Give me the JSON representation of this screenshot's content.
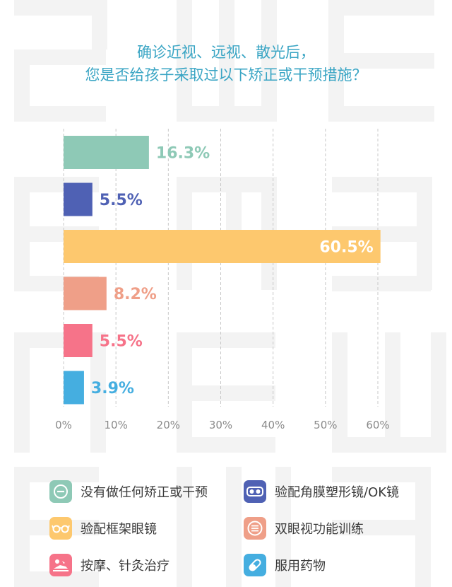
{
  "colors": {
    "title": "#3aa5c4",
    "axis_text": "#8a8a8a",
    "watermark": "#f3f3f3"
  },
  "chart_data": {
    "type": "bar",
    "orientation": "horizontal",
    "title": "确诊近视、远视、散光后，您是否给孩子采取过以下矫正或干预措施？",
    "title_lines": [
      "确诊近视、远视、散光后，",
      "您是否给孩子采取过以下矫正或干预措施？"
    ],
    "xlim": [
      0,
      60
    ],
    "x_ticks": [
      "0%",
      "10%",
      "20%",
      "30%",
      "40%",
      "50%",
      "60%"
    ],
    "grid": "vertical dashed",
    "legend_position": "bottom",
    "series": [
      {
        "name": "没有做任何矫正或干预",
        "value": 16.3,
        "label": "16.3%",
        "color": "#8ec9b6",
        "icon": "minus-circle-icon"
      },
      {
        "name": "验配角膜塑形镜/OK镜",
        "value": 5.5,
        "label": "5.5%",
        "color": "#4f61b4",
        "icon": "ok-lens-goggles-icon"
      },
      {
        "name": "验配框架眼镜",
        "value": 60.5,
        "label": "60.5%",
        "color": "#fdc86e",
        "icon": "glasses-icon"
      },
      {
        "name": "双眼视功能训练",
        "value": 8.2,
        "label": "8.2%",
        "color": "#ef9f88",
        "icon": "list-circle-icon"
      },
      {
        "name": "按摩、针灸治疗",
        "value": 5.5,
        "label": "5.5%",
        "color": "#f67389",
        "icon": "massage-icon"
      },
      {
        "name": "服用药物",
        "value": 3.9,
        "label": "3.9%",
        "color": "#45aee0",
        "icon": "pill-icon"
      }
    ]
  }
}
